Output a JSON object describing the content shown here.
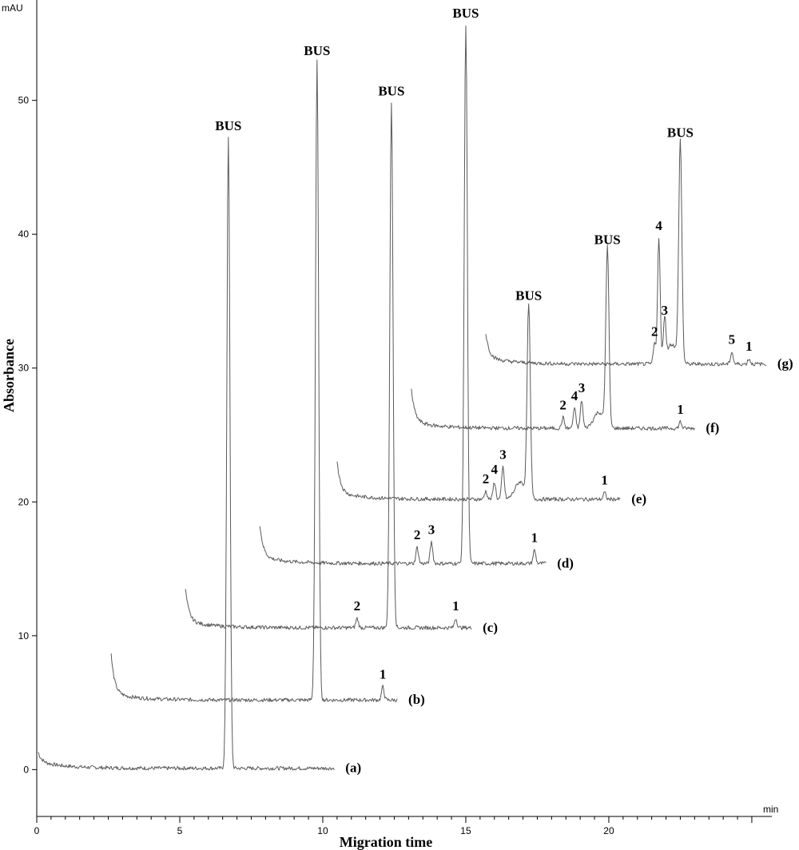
{
  "chart_data": {
    "type": "line",
    "title": "",
    "xlabel": "Migration time",
    "ylabel": "Absorbance",
    "x_unit": "min",
    "y_unit": "mAU",
    "xlim": [
      0,
      25.7
    ],
    "ylim": [
      -3.5,
      57.5
    ],
    "x_ticks": [
      0,
      5,
      10,
      15,
      20
    ],
    "x_tick_labels": [
      "0",
      "5",
      "10",
      "15",
      "20"
    ],
    "y_ticks": [
      0,
      10,
      20,
      30,
      40,
      50
    ],
    "y_tick_labels": [
      "0",
      "10",
      "20",
      "30",
      "40",
      "50"
    ],
    "grid": false,
    "legend": "none",
    "series": [
      {
        "label": "(a)",
        "x_start": 0.05,
        "x_end": 10.4,
        "baseline": 0.1,
        "start_peak": 0.7,
        "peaks": [
          {
            "label": "BUS",
            "x": 6.7,
            "height": 47.2
          }
        ]
      },
      {
        "label": "(b)",
        "x_start": 2.6,
        "x_end": 12.6,
        "baseline": 5.2,
        "start_peak": 2.9,
        "peaks": [
          {
            "label": "BUS",
            "x": 9.8,
            "height": 47.7
          },
          {
            "label": "1",
            "x": 12.1,
            "height": 1.0
          }
        ]
      },
      {
        "label": "(c)",
        "x_start": 5.2,
        "x_end": 15.2,
        "baseline": 10.6,
        "start_peak": 2.4,
        "peaks": [
          {
            "label": "2",
            "x": 11.2,
            "height": 0.7
          },
          {
            "label": "BUS",
            "x": 12.4,
            "height": 39.3
          },
          {
            "label": "1",
            "x": 14.65,
            "height": 0.7
          }
        ]
      },
      {
        "label": "(d)",
        "x_start": 7.8,
        "x_end": 17.8,
        "baseline": 15.4,
        "start_peak": 2.4,
        "peaks": [
          {
            "label": "2",
            "x": 13.3,
            "height": 1.2
          },
          {
            "label": "3",
            "x": 13.8,
            "height": 1.6
          },
          {
            "label": "BUS",
            "x": 15.0,
            "height": 40.3
          },
          {
            "label": "1",
            "x": 17.4,
            "height": 1.0
          }
        ]
      },
      {
        "label": "(e)",
        "x_start": 10.5,
        "x_end": 20.4,
        "baseline": 20.2,
        "start_peak": 2.4,
        "peaks": [
          {
            "label": "2",
            "x": 15.7,
            "height": 0.6
          },
          {
            "label": "4",
            "x": 16.0,
            "height": 1.3
          },
          {
            "label": "3",
            "x": 16.3,
            "height": 2.4
          },
          {
            "label": "BUS",
            "x": 17.2,
            "height": 14.4
          },
          {
            "label": "1",
            "x": 19.85,
            "height": 0.5
          }
        ]
      },
      {
        "label": "(f)",
        "x_start": 13.1,
        "x_end": 23.0,
        "baseline": 25.5,
        "start_peak": 2.4,
        "peaks": [
          {
            "label": "2",
            "x": 18.4,
            "height": 0.8
          },
          {
            "label": "4",
            "x": 18.8,
            "height": 1.5
          },
          {
            "label": "3",
            "x": 19.05,
            "height": 2.1
          },
          {
            "label": "BUS",
            "x": 19.95,
            "height": 13.3
          },
          {
            "label": "1",
            "x": 22.5,
            "height": 0.5
          }
        ]
      },
      {
        "label": "(g)",
        "x_start": 15.7,
        "x_end": 25.5,
        "baseline": 30.3,
        "start_peak": 1.8,
        "peaks": [
          {
            "label": "2",
            "x": 21.6,
            "height": 1.5
          },
          {
            "label": "4",
            "x": 21.75,
            "height": 9.4
          },
          {
            "label": "3",
            "x": 21.95,
            "height": 3.1
          },
          {
            "label": "BUS",
            "x": 22.5,
            "height": 16.5
          },
          {
            "label": "5",
            "x": 24.3,
            "height": 0.9
          },
          {
            "label": "1",
            "x": 24.9,
            "height": 0.4
          }
        ]
      }
    ]
  }
}
